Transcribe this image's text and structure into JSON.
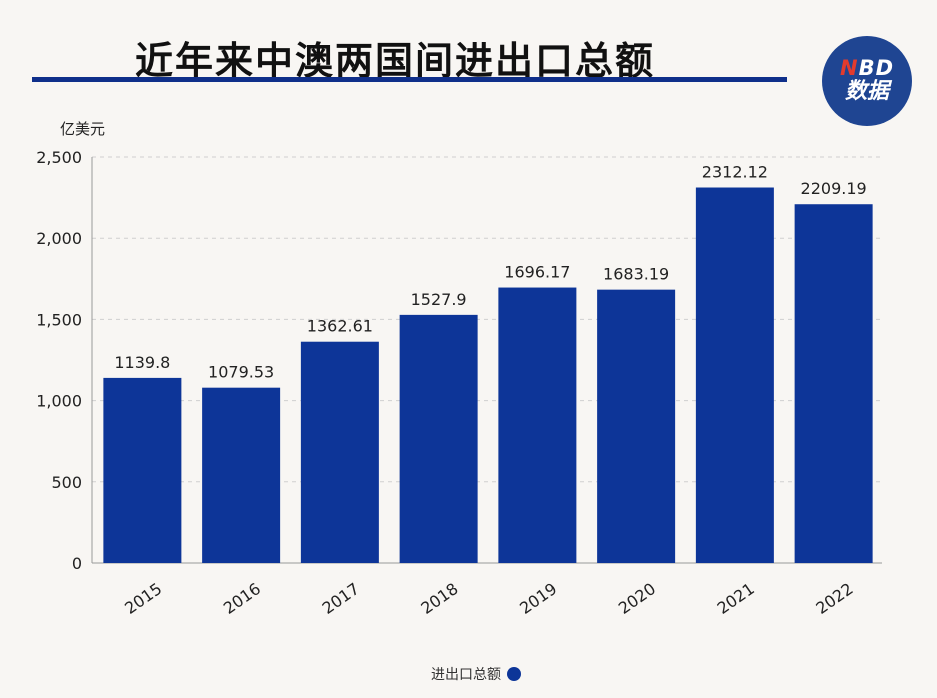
{
  "header": {
    "title": "近年来中澳两国间进出口总额"
  },
  "logo": {
    "line1_n": "N",
    "line1_rest": "BD",
    "line2": "数据"
  },
  "colors": {
    "bar": "#0d3598",
    "title_rule": "#0f2f8a",
    "logo_bg": "#1f4592",
    "background": "#f8f6f3"
  },
  "chart_data": {
    "type": "bar",
    "categories": [
      "2015",
      "2016",
      "2017",
      "2018",
      "2019",
      "2020",
      "2021",
      "2022"
    ],
    "series": [
      {
        "name": "进出口总额",
        "values": [
          1139.8,
          1079.53,
          1362.61,
          1527.9,
          1696.17,
          1683.19,
          2312.12,
          2209.19
        ],
        "labels": [
          "1139.8",
          "1079.53",
          "1362.61",
          "1527.9",
          "1696.17",
          "1683.19",
          "2312.12",
          "2209.19"
        ]
      }
    ],
    "ylabel": "亿美元",
    "ylim": [
      0,
      2500
    ],
    "yticks": [
      0,
      500,
      1000,
      1500,
      2000,
      2500
    ],
    "ytick_labels": [
      "0",
      "500",
      "1,000",
      "1,500",
      "2,000",
      "2,500"
    ],
    "grid": true,
    "legend_position": "bottom-center"
  }
}
